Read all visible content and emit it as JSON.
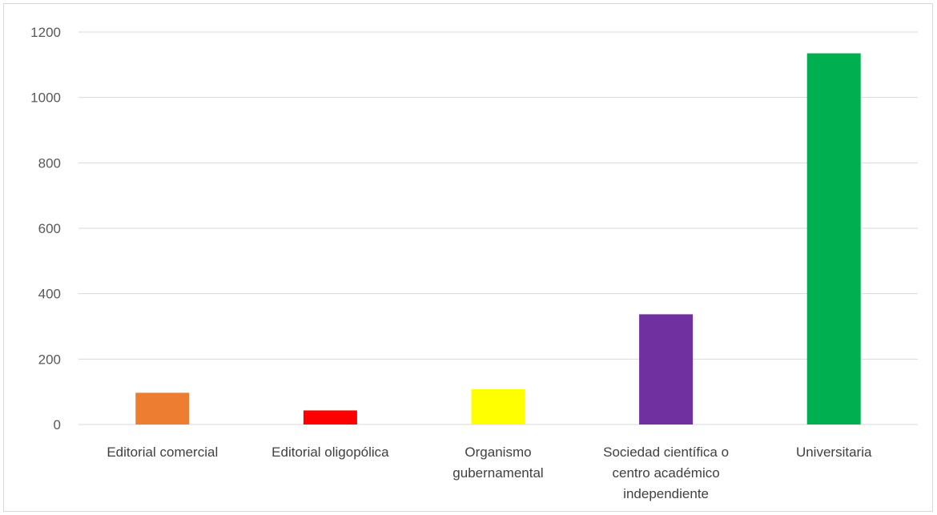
{
  "chart_data": {
    "type": "bar",
    "categories": [
      [
        "Editorial comercial"
      ],
      [
        "Editorial oligopólica"
      ],
      [
        "Organismo",
        "gubernamental"
      ],
      [
        "Sociedad científica o",
        "centro académico",
        "independiente"
      ],
      [
        "Universitaria"
      ]
    ],
    "values": [
      97,
      43,
      108,
      337,
      1135
    ],
    "colors": [
      "#ed7d31",
      "#ff0000",
      "#ffff00",
      "#7030a0",
      "#00b050"
    ],
    "ylim": [
      0,
      1200
    ],
    "yticks": [
      "0",
      "200",
      "400",
      "600",
      "800",
      "1000",
      "1200"
    ],
    "grid": true,
    "title": "",
    "xlabel": "",
    "ylabel": ""
  }
}
